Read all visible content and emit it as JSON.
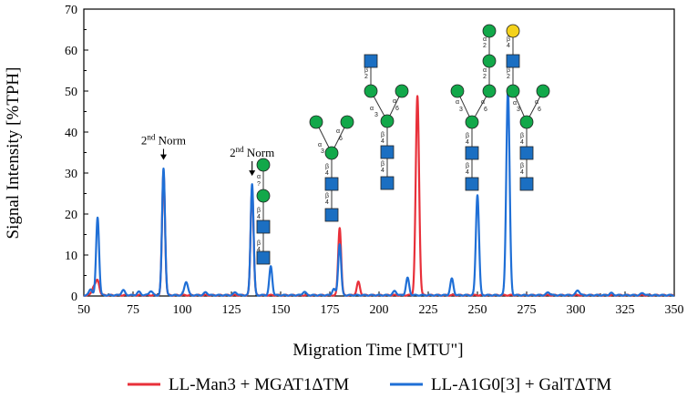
{
  "chart_data": {
    "type": "line",
    "title": "",
    "xlabel": "Migration Time [MTU\"]",
    "ylabel": "Signal Intensity [%TPH]",
    "xlim": [
      50,
      350
    ],
    "ylim": [
      0,
      70
    ],
    "xticks": [
      50,
      75,
      100,
      125,
      150,
      175,
      200,
      225,
      250,
      275,
      300,
      325,
      350
    ],
    "yticks": [
      0,
      10,
      20,
      30,
      40,
      50,
      60,
      70
    ],
    "grid": false,
    "legend_position": "bottom",
    "series": [
      {
        "name": "LL-Man3 + MGAT1ΔTM",
        "color": "#e8303a",
        "baseline": 0.2,
        "peaks": [
          {
            "x": 55.0,
            "y": 2.0,
            "w": 0.9
          },
          {
            "x": 57.0,
            "y": 3.5,
            "w": 0.9
          },
          {
            "x": 90.5,
            "y": 30.0,
            "w": 0.75
          },
          {
            "x": 135.5,
            "y": 26.0,
            "w": 0.75
          },
          {
            "x": 180.0,
            "y": 16.5,
            "w": 0.75
          },
          {
            "x": 189.5,
            "y": 3.2,
            "w": 0.8
          },
          {
            "x": 219.5,
            "y": 48.5,
            "w": 0.85
          }
        ]
      },
      {
        "name": "LL-A1G0[3] + GalTΔTM",
        "color": "#1f6fd6",
        "baseline": 0.2,
        "peaks": [
          {
            "x": 53.5,
            "y": 1.5,
            "w": 0.8
          },
          {
            "x": 57.0,
            "y": 19.0,
            "w": 0.75
          },
          {
            "x": 70.0,
            "y": 1.2,
            "w": 0.9
          },
          {
            "x": 78.0,
            "y": 0.8,
            "w": 0.9
          },
          {
            "x": 84.0,
            "y": 1.0,
            "w": 0.9
          },
          {
            "x": 90.5,
            "y": 31.0,
            "w": 0.75
          },
          {
            "x": 102.0,
            "y": 3.3,
            "w": 0.9
          },
          {
            "x": 112.0,
            "y": 0.7,
            "w": 0.9
          },
          {
            "x": 127.0,
            "y": 0.7,
            "w": 0.9
          },
          {
            "x": 135.5,
            "y": 27.2,
            "w": 0.75
          },
          {
            "x": 145.0,
            "y": 7.0,
            "w": 0.75
          },
          {
            "x": 162.0,
            "y": 0.8,
            "w": 0.9
          },
          {
            "x": 177.0,
            "y": 1.5,
            "w": 0.8
          },
          {
            "x": 180.0,
            "y": 12.5,
            "w": 0.75
          },
          {
            "x": 208.0,
            "y": 1.0,
            "w": 0.9
          },
          {
            "x": 214.5,
            "y": 4.2,
            "w": 0.8
          },
          {
            "x": 237.0,
            "y": 4.0,
            "w": 0.8
          },
          {
            "x": 250.0,
            "y": 24.5,
            "w": 0.8
          },
          {
            "x": 265.5,
            "y": 50.0,
            "w": 0.85
          },
          {
            "x": 286.0,
            "y": 0.7,
            "w": 0.9
          },
          {
            "x": 301.0,
            "y": 1.2,
            "w": 0.9
          },
          {
            "x": 318.0,
            "y": 0.5,
            "w": 0.9
          },
          {
            "x": 334.0,
            "y": 0.5,
            "w": 0.9
          }
        ]
      }
    ],
    "annotations": [
      {
        "text": "2",
        "sup": "nd",
        "rest": " Norm",
        "x": 90.5,
        "label_y": 37.0,
        "arrow_to": 33.2
      },
      {
        "text": "2",
        "sup": "nd",
        "rest": " Norm",
        "x": 135.5,
        "label_y": 34.0,
        "arrow_to": 29.3
      }
    ]
  }
}
